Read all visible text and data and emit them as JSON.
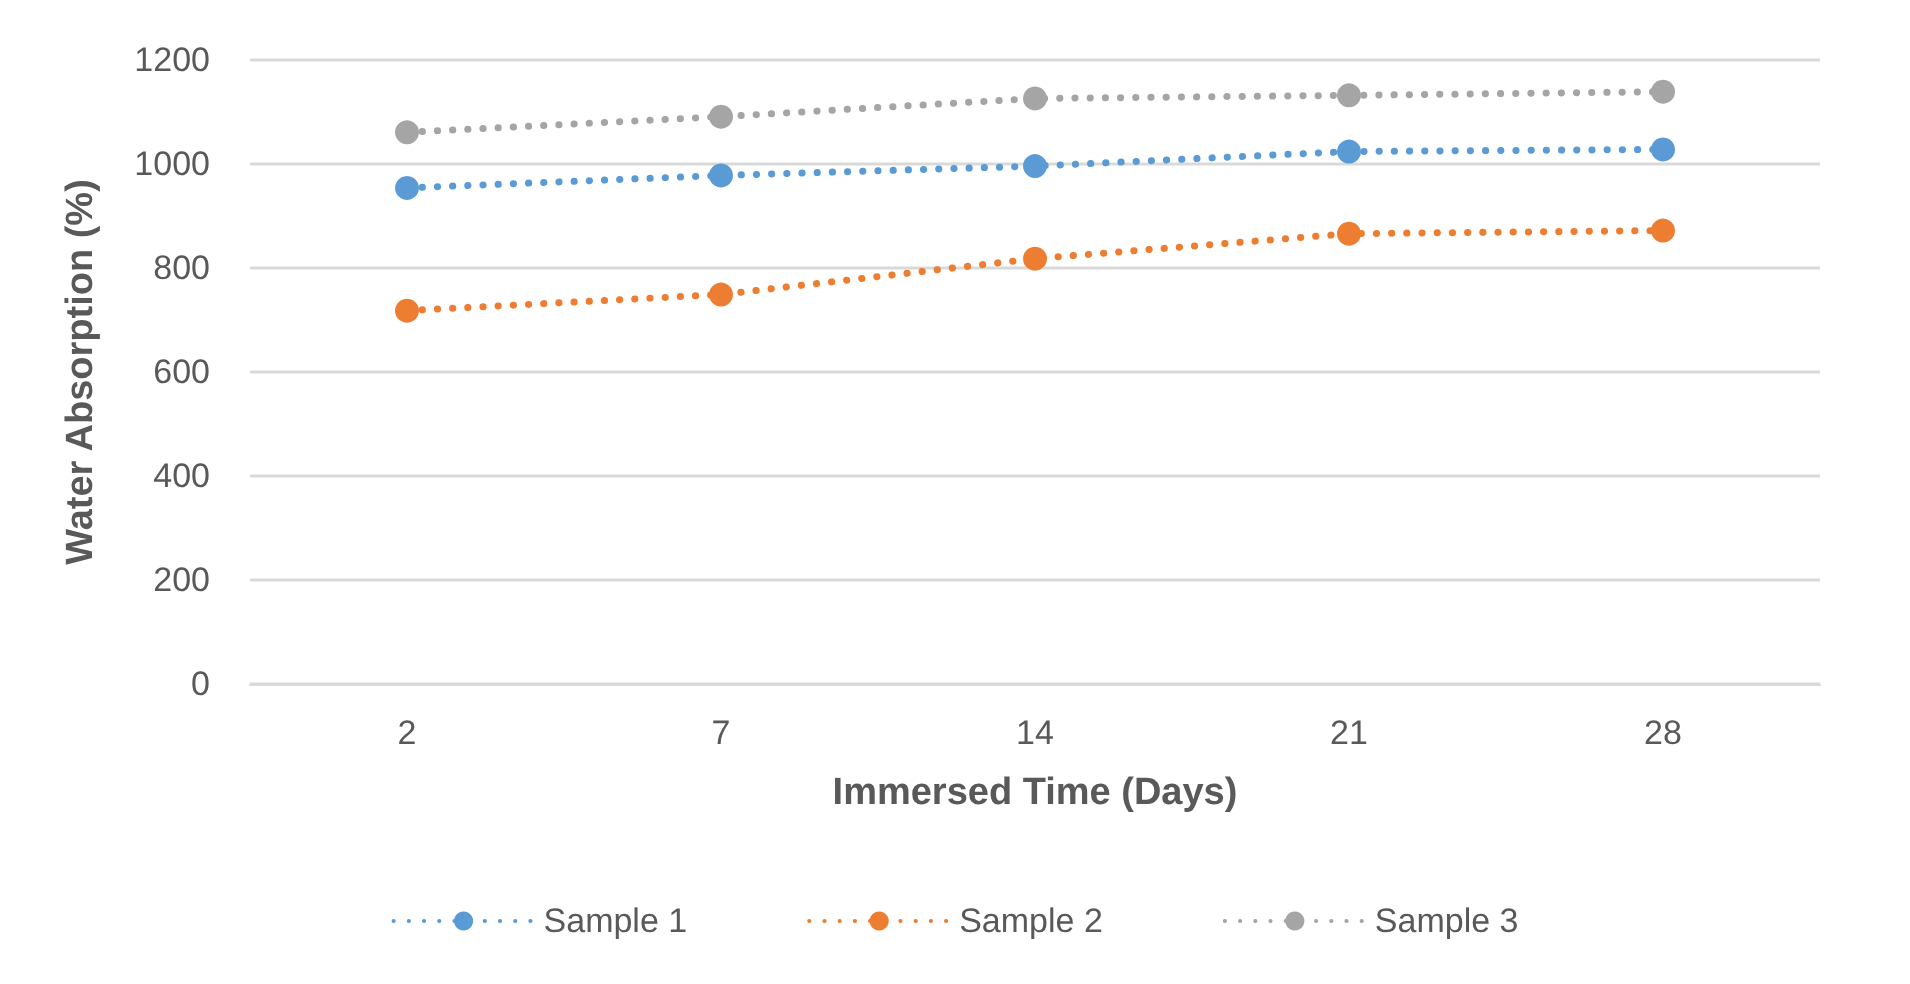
{
  "chart_data": {
    "type": "line",
    "xlabel": "Immersed Time (Days)",
    "ylabel": "Water Absorption (%)",
    "categories": [
      "2",
      "7",
      "14",
      "21",
      "28"
    ],
    "series": [
      {
        "name": "Sample 1",
        "color": "#5b9bd5",
        "values": [
          954,
          978,
          996,
          1024,
          1028
        ]
      },
      {
        "name": "Sample 2",
        "color": "#ed7d31",
        "values": [
          718,
          749,
          818,
          866,
          872
        ]
      },
      {
        "name": "Sample 3",
        "color": "#a5a5a5",
        "values": [
          1061,
          1091,
          1126,
          1132,
          1139
        ]
      }
    ],
    "ylim": [
      0,
      1200
    ],
    "yticks": [
      0,
      200,
      400,
      600,
      800,
      1000,
      1200
    ],
    "grid": "y",
    "legend": "bottom",
    "marker": "circle",
    "line_style": "dotted"
  }
}
